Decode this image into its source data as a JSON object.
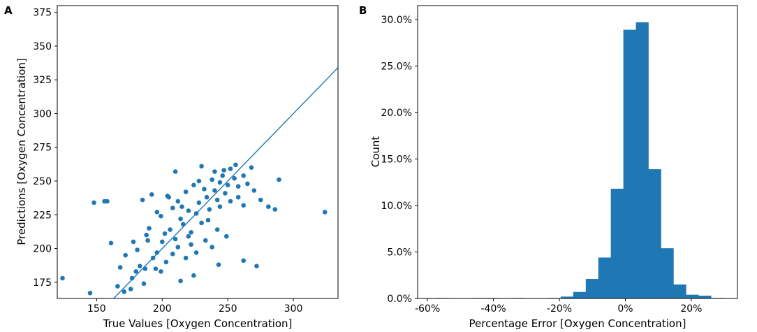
{
  "chart_data": [
    {
      "panel": "A",
      "type": "scatter",
      "xlabel": "True Values [Oxygen Concentration]",
      "ylabel": "Predictions [Oxygen Concentration]",
      "xlim": [
        120,
        334
      ],
      "ylim": [
        163,
        380
      ],
      "xticks": [
        150,
        200,
        250,
        300
      ],
      "yticks": [
        175,
        200,
        225,
        250,
        275,
        300,
        325,
        350,
        375
      ],
      "color": "#1f77b4",
      "reference_line": {
        "slope": 1,
        "intercept": 0
      },
      "points": [
        [
          124,
          178
        ],
        [
          148,
          234
        ],
        [
          156,
          235
        ],
        [
          158,
          235
        ],
        [
          145,
          167
        ],
        [
          161,
          204
        ],
        [
          168,
          186
        ],
        [
          172,
          195
        ],
        [
          177,
          178
        ],
        [
          180,
          183
        ],
        [
          183,
          187
        ],
        [
          186,
          174
        ],
        [
          189,
          206
        ],
        [
          190,
          215
        ],
        [
          193,
          193
        ],
        [
          196,
          197
        ],
        [
          199,
          224
        ],
        [
          200,
          205
        ],
        [
          202,
          211
        ],
        [
          204,
          239
        ],
        [
          206,
          214
        ],
        [
          208,
          230
        ],
        [
          210,
          207
        ],
        [
          212,
          235
        ],
        [
          214,
          222
        ],
        [
          216,
          218
        ],
        [
          218,
          242
        ],
        [
          220,
          228
        ],
        [
          222,
          212
        ],
        [
          224,
          247
        ],
        [
          226,
          226
        ],
        [
          228,
          234
        ],
        [
          230,
          219
        ],
        [
          232,
          244
        ],
        [
          234,
          238
        ],
        [
          236,
          229
        ],
        [
          238,
          251
        ],
        [
          240,
          243
        ],
        [
          242,
          236
        ],
        [
          244,
          249
        ],
        [
          246,
          254
        ],
        [
          248,
          241
        ],
        [
          250,
          247
        ],
        [
          252,
          259
        ],
        [
          255,
          252
        ],
        [
          258,
          246
        ],
        [
          262,
          254
        ],
        [
          265,
          248
        ],
        [
          270,
          243
        ],
        [
          275,
          236
        ],
        [
          289,
          251
        ],
        [
          281,
          231
        ],
        [
          286,
          229
        ],
        [
          324,
          227
        ],
        [
          272,
          187
        ],
        [
          262,
          191
        ],
        [
          243,
          188
        ],
        [
          224,
          180
        ],
        [
          214,
          176
        ],
        [
          199,
          183
        ],
        [
          187,
          185
        ],
        [
          176,
          170
        ],
        [
          171,
          168
        ],
        [
          166,
          172
        ],
        [
          185,
          236
        ],
        [
          192,
          240
        ],
        [
          205,
          238
        ],
        [
          196,
          227
        ],
        [
          210,
          257
        ],
        [
          230,
          261
        ],
        [
          247,
          258
        ],
        [
          256,
          262
        ],
        [
          233,
          206
        ],
        [
          226,
          197
        ],
        [
          238,
          201
        ],
        [
          249,
          209
        ],
        [
          242,
          214
        ],
        [
          218,
          193
        ],
        [
          208,
          196
        ],
        [
          222,
          203
        ],
        [
          181,
          199
        ],
        [
          178,
          205
        ],
        [
          195,
          185
        ],
        [
          203,
          190
        ],
        [
          212,
          201
        ],
        [
          188,
          210
        ],
        [
          215,
          231
        ],
        [
          220,
          209
        ],
        [
          235,
          221
        ],
        [
          244,
          231
        ],
        [
          252,
          235
        ],
        [
          258,
          238
        ],
        [
          262,
          232
        ],
        [
          228,
          250
        ],
        [
          240,
          257
        ],
        [
          268,
          260
        ]
      ]
    },
    {
      "panel": "B",
      "type": "bar",
      "xlabel": "Percentage Error [Oxygen Concentration]",
      "ylabel": "Count",
      "xlim": [
        -63,
        34
      ],
      "ylim": [
        0,
        31.5
      ],
      "xticks": [
        -60,
        -40,
        -20,
        0,
        20
      ],
      "xtick_labels": [
        "-60%",
        "-40%",
        "-20%",
        "0%",
        "20%"
      ],
      "yticks": [
        0,
        5,
        10,
        15,
        20,
        25,
        30
      ],
      "ytick_labels": [
        "0.0%",
        "5.0%",
        "10.0%",
        "15.0%",
        "20.0%",
        "25.0%",
        "30.0%"
      ],
      "color": "#1f77b4",
      "bin_edges": [
        -57.6,
        -53.8,
        -50.0,
        -46.2,
        -42.4,
        -38.6,
        -34.8,
        -31.0,
        -27.2,
        -23.4,
        -19.6,
        -15.8,
        -12.0,
        -8.2,
        -4.4,
        -0.6,
        3.2,
        7.0,
        10.8,
        14.6,
        18.4,
        22.2,
        26.0,
        29.8
      ],
      "values": [
        0.05,
        0,
        0,
        0.05,
        0.05,
        0,
        0.05,
        0,
        0,
        0.05,
        0.2,
        0.7,
        2.1,
        4.4,
        11.8,
        28.9,
        29.7,
        13.9,
        5.4,
        1.5,
        0.4,
        0.3,
        0.05
      ]
    }
  ],
  "panel_labels": {
    "a": "A",
    "b": "B"
  }
}
